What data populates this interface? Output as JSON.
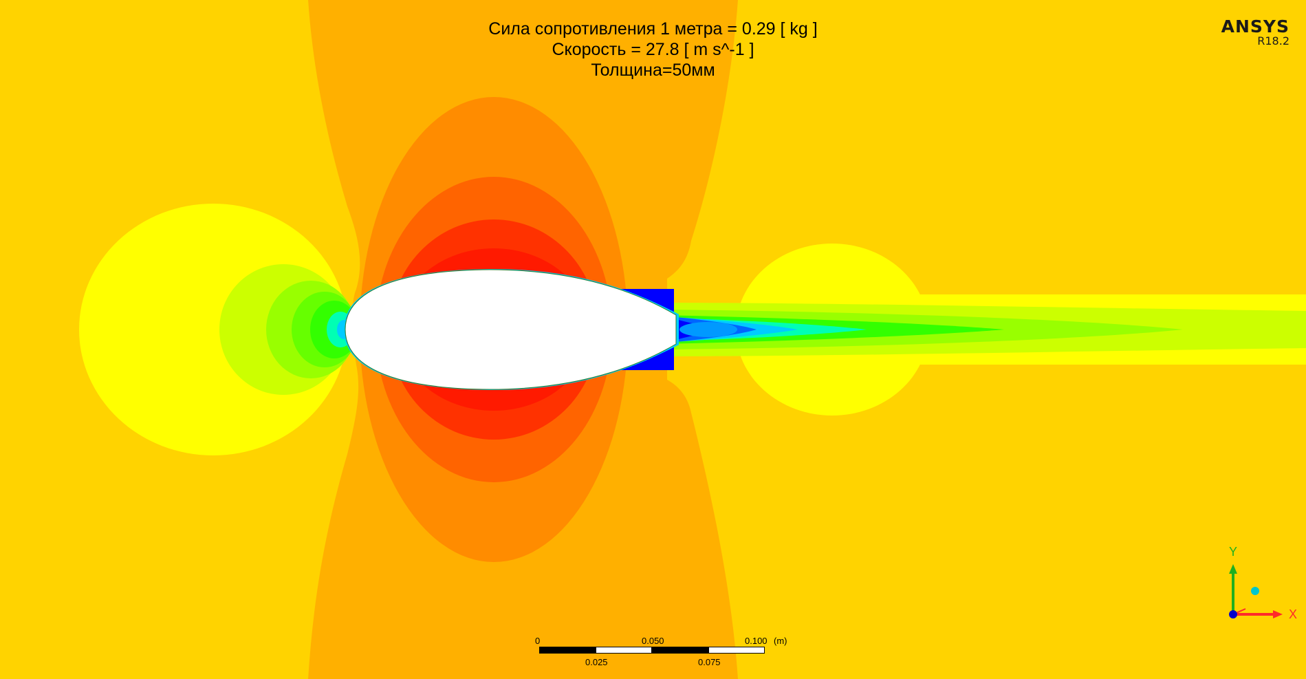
{
  "annotation": {
    "line1": "Сила сопротивления 1 метра = 0.29 [ kg ]",
    "line2": "Скорость = 27.8 [ m s^-1 ]",
    "line3": "Толщина=50мм"
  },
  "logo": {
    "brand": "ANSYS",
    "version": "R18.2"
  },
  "scale_bar": {
    "top_labels": [
      "0",
      "0.050",
      "0.100"
    ],
    "unit": "(m)",
    "bottom_labels": [
      "0.025",
      "0.075"
    ]
  },
  "triad": {
    "x_label": "X",
    "y_label": "Y",
    "x_color": "#FF2A2A",
    "y_color": "#1FB01F",
    "z_color": "#00C6CC"
  },
  "colors": {
    "freestream": "#FFD300",
    "contour_levels": [
      "#0000FF",
      "#0066FF",
      "#00CCFF",
      "#00FFB4",
      "#33FF00",
      "#99FF00",
      "#CCFF00",
      "#FFFF00",
      "#FFD300",
      "#FFB000",
      "#FF8C00",
      "#FF6400",
      "#FF3200",
      "#FF1A00"
    ],
    "body_fill": "#FFFFFF"
  }
}
